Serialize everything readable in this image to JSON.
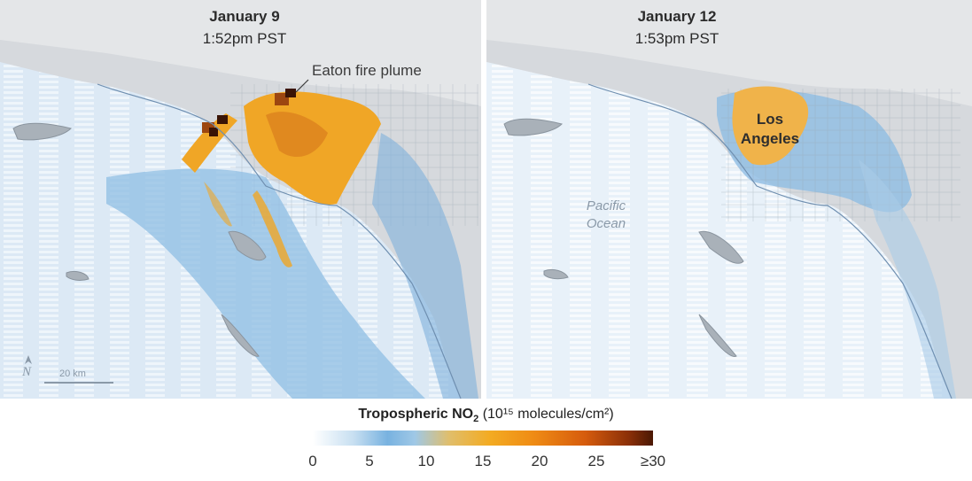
{
  "left_panel": {
    "date": "January 9",
    "time": "1:52pm PST",
    "annotation": "Eaton fire plume",
    "scale": "20 km",
    "north_symbol": "N"
  },
  "right_panel": {
    "date": "January 12",
    "time": "1:53pm PST",
    "city_line1": "Los",
    "city_line2": "Angeles",
    "ocean_line1": "Pacific",
    "ocean_line2": "Ocean"
  },
  "legend": {
    "title_main": "Tropospheric NO",
    "title_sub": "2",
    "title_units": "(10¹⁵ molecules/cm²)",
    "ticks": [
      "0",
      "5",
      "10",
      "15",
      "20",
      "25",
      "≥30"
    ]
  },
  "colors": {
    "low": "#ffffff",
    "mid": "#f3ab22",
    "high": "#4a1804",
    "land": "#d4d8dc"
  }
}
